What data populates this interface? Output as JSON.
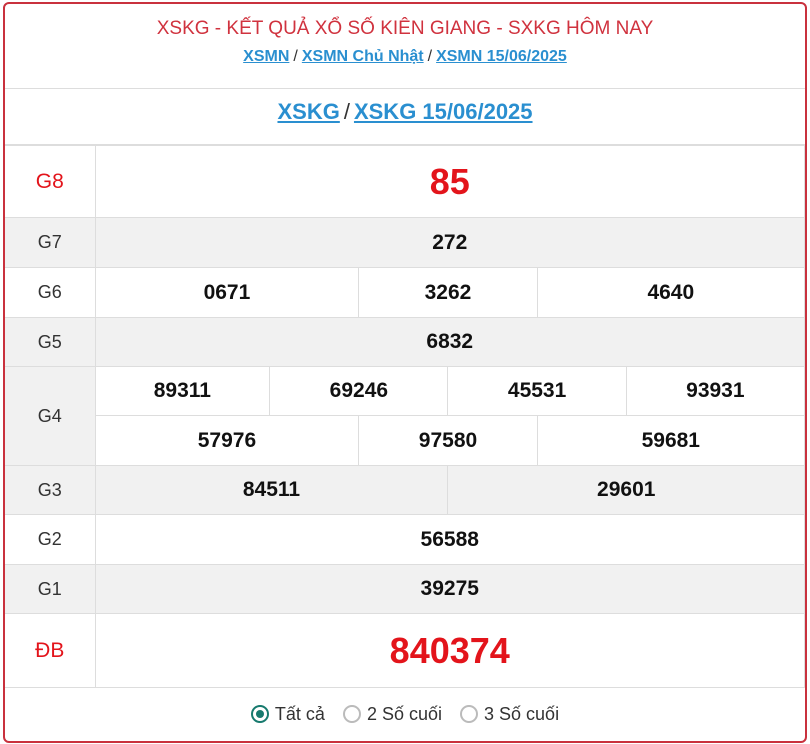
{
  "header": {
    "title": "XSKG - KẾT QUẢ XỔ SỐ KIÊN GIANG - SXKG HÔM NAY",
    "links": [
      "XSMN",
      "XSMN Chủ Nhật",
      "XSMN 15/06/2025"
    ],
    "sep": "/"
  },
  "subheader": {
    "links": [
      "XSKG",
      "XSKG 15/06/2025"
    ]
  },
  "prizes": {
    "g8": {
      "label": "G8",
      "values": [
        "85"
      ]
    },
    "g7": {
      "label": "G7",
      "values": [
        "272"
      ]
    },
    "g6": {
      "label": "G6",
      "values": [
        "0671",
        "3262",
        "4640"
      ]
    },
    "g5": {
      "label": "G5",
      "values": [
        "6832"
      ]
    },
    "g4": {
      "label": "G4",
      "values": [
        "89311",
        "69246",
        "45531",
        "93931",
        "57976",
        "97580",
        "59681"
      ]
    },
    "g3": {
      "label": "G3",
      "values": [
        "84511",
        "29601"
      ]
    },
    "g2": {
      "label": "G2",
      "values": [
        "56588"
      ]
    },
    "g1": {
      "label": "G1",
      "values": [
        "39275"
      ]
    },
    "db": {
      "label": "ĐB",
      "values": [
        "840374"
      ]
    }
  },
  "filter": {
    "options": [
      "Tất cả",
      "2 Số cuối",
      "3 Số cuối"
    ],
    "selected": "Tất cả"
  },
  "colors": {
    "accent": "#c9313d",
    "link": "#2a8fd0",
    "prize": "#e3141b",
    "radio": "#177a6e"
  }
}
